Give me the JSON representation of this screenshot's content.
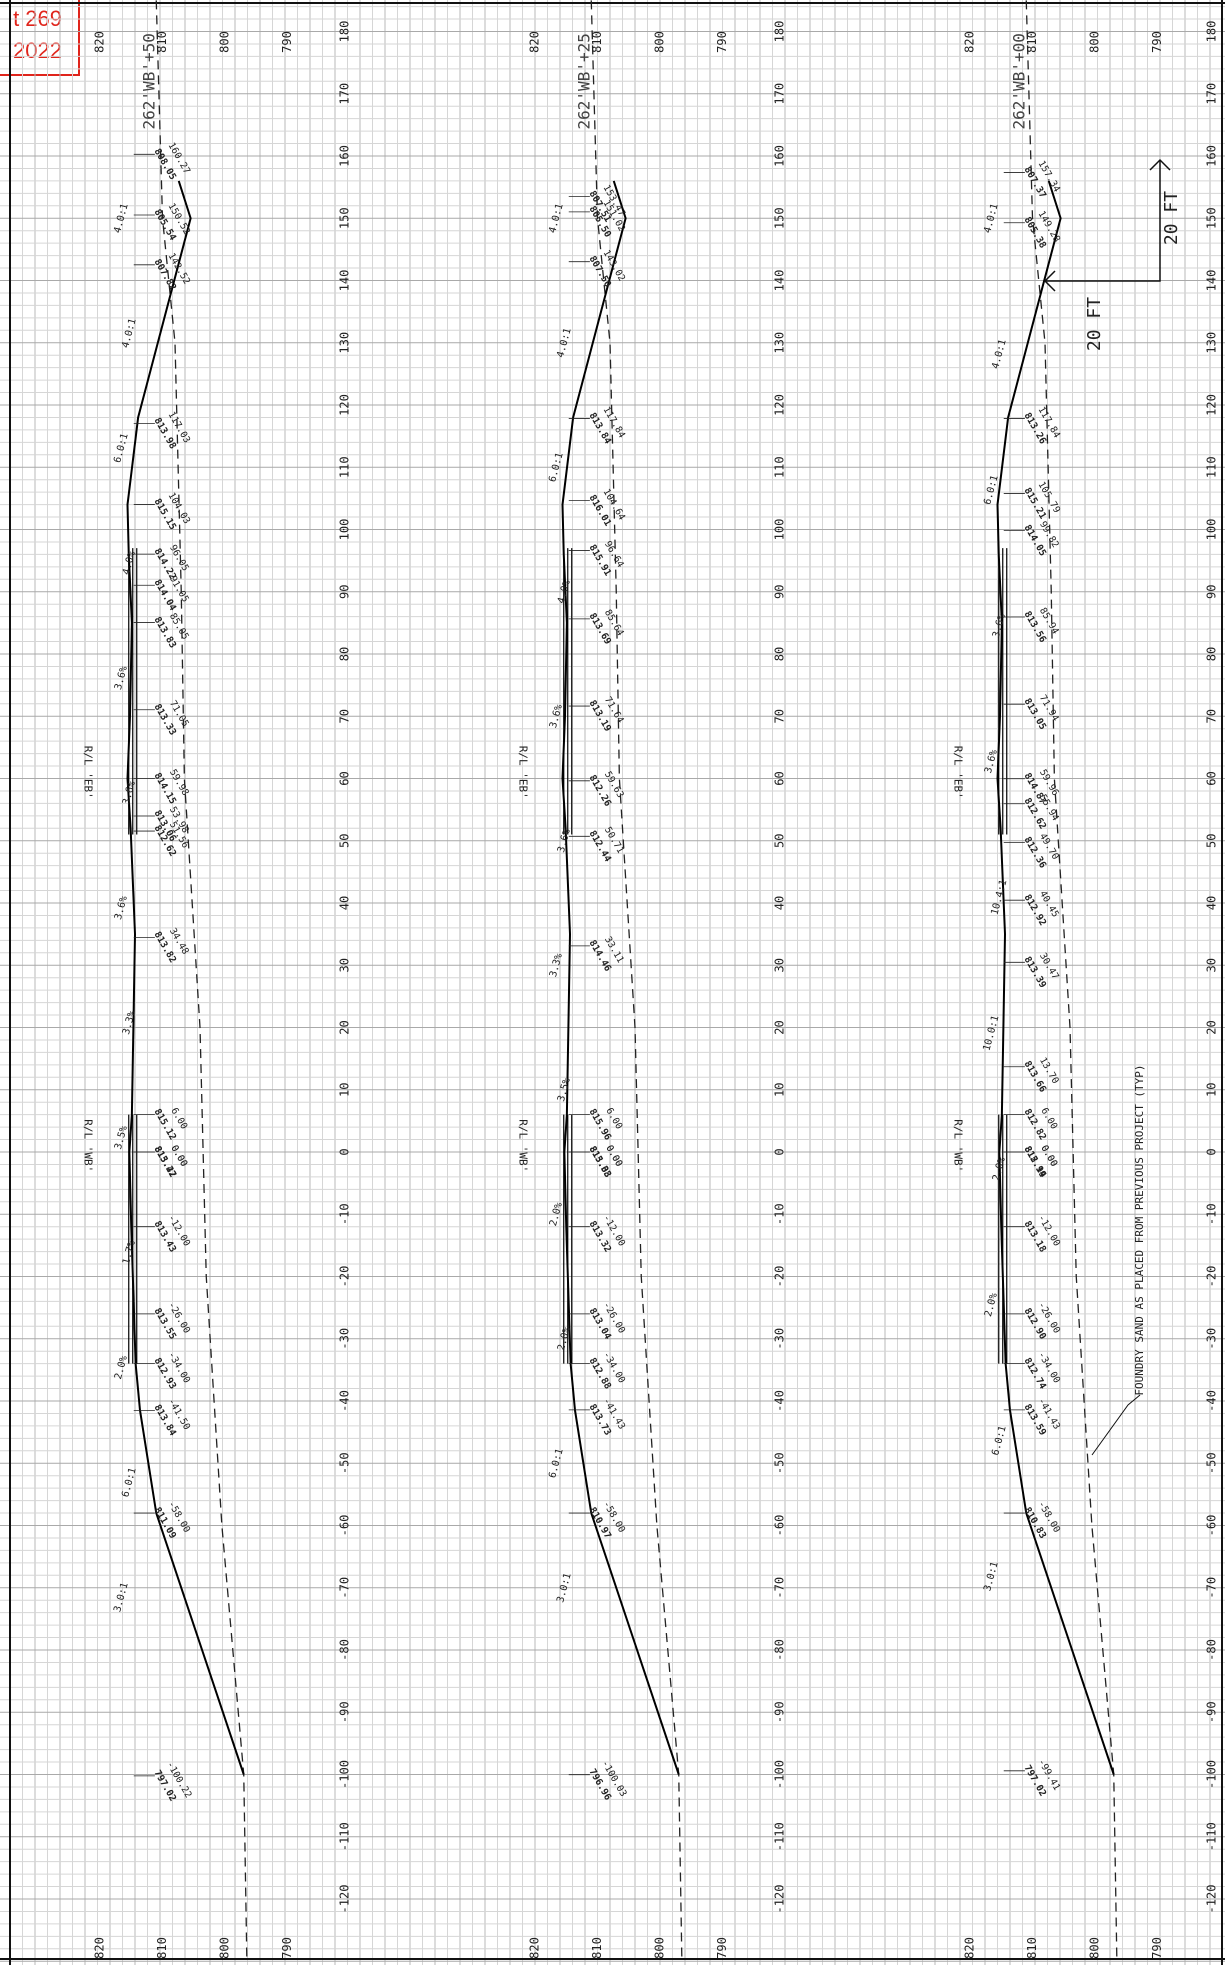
{
  "stamp": {
    "line1": "t 269",
    "line2": "2022"
  },
  "station_axis": {
    "labels": [
      "180",
      "170",
      "160",
      "150",
      "140",
      "130",
      "120",
      "110",
      "100",
      "90",
      "80",
      "70",
      "60",
      "50",
      "40",
      "30",
      "20",
      "10",
      "0",
      "-10",
      "-20",
      "-30",
      "-40",
      "-50",
      "-60",
      "-70",
      "-80",
      "-90",
      "-100",
      "-110",
      "-120"
    ],
    "values": [
      180,
      170,
      160,
      150,
      140,
      130,
      120,
      110,
      100,
      90,
      80,
      70,
      60,
      50,
      40,
      30,
      20,
      10,
      0,
      -10,
      -20,
      -30,
      -40,
      -50,
      -60,
      -70,
      -80,
      -90,
      -100,
      -110,
      -120
    ]
  },
  "elevation_axis": {
    "labels": [
      "820",
      "810",
      "800",
      "790"
    ],
    "values": [
      820,
      810,
      800,
      790
    ]
  },
  "sections": [
    {
      "title": "262'WB'+50",
      "rl_top": "R/L 'EB'",
      "rl_bottom": "R/L 'WB'",
      "slopes": [
        "4.0:1",
        "4.0:1",
        "6.0:1",
        "4.0%",
        "3.6%",
        "3.6%",
        "3.6%",
        "3.3%",
        "3.5%",
        "1.7%",
        "2.0%",
        "6.0:1",
        "3.0:1"
      ],
      "points": [
        {
          "off": "160.27",
          "elev": "808.05"
        },
        {
          "off": "150.52",
          "elev": "805.54"
        },
        {
          "off": "142.52",
          "elev": "807.82"
        },
        {
          "off": "117.03",
          "elev": "813.98"
        },
        {
          "off": "104.03",
          "elev": "815.15"
        },
        {
          "off": "96.05",
          "elev": "814.22"
        },
        {
          "off": "91.05",
          "elev": "814.04"
        },
        {
          "off": "85.05",
          "elev": "813.83"
        },
        {
          "off": "71.05",
          "elev": "813.33"
        },
        {
          "off": "59.98",
          "elev": "814.15"
        },
        {
          "off": "53.98",
          "elev": "813.06"
        },
        {
          "off": "51.56",
          "elev": "812.62"
        },
        {
          "off": "34.48",
          "elev": "813.82"
        },
        {
          "off": "0.00",
          "elev": "815.47"
        },
        {
          "off": "6.00",
          "elev": "815.12"
        },
        {
          "off": "0.00",
          "elev": "813.22"
        },
        {
          "off": "-12.00",
          "elev": "813.43"
        },
        {
          "off": "-26.00",
          "elev": "813.55"
        },
        {
          "off": "-34.00",
          "elev": "812.93"
        },
        {
          "off": "-41.50",
          "elev": "813.84"
        },
        {
          "off": "-58.00",
          "elev": "811.09"
        },
        {
          "off": "-100.22",
          "elev": "797.02"
        }
      ]
    },
    {
      "title": "262'WB'+25",
      "rl_top": "R/L 'EB'",
      "rl_bottom": "R/L 'WB'",
      "slopes": [
        "4.0:1",
        "4.0:1",
        "6.0:1",
        "4.0%",
        "3.6%",
        "3.6%",
        "3.3%",
        "3.5%",
        "2.0%",
        "2.0%",
        "6.0:1",
        "3.0:1"
      ],
      "points": [
        {
          "off": "153.47",
          "elev": "807.51"
        },
        {
          "off": "151.02",
          "elev": "805.50"
        },
        {
          "off": "143.02",
          "elev": "807.50"
        },
        {
          "off": "117.84",
          "elev": "813.84"
        },
        {
          "off": "104.64",
          "elev": "816.01"
        },
        {
          "off": "96.64",
          "elev": "815.91"
        },
        {
          "off": "85.64",
          "elev": "813.69"
        },
        {
          "off": "71.64",
          "elev": "813.19"
        },
        {
          "off": "59.63",
          "elev": "812.26"
        },
        {
          "off": "50.71",
          "elev": "812.44"
        },
        {
          "off": "33.11",
          "elev": "814.46"
        },
        {
          "off": "0.00",
          "elev": "815.33"
        },
        {
          "off": "6.00",
          "elev": "815.96"
        },
        {
          "off": "0.00",
          "elev": "813.08"
        },
        {
          "off": "-12.00",
          "elev": "813.32"
        },
        {
          "off": "-26.00",
          "elev": "813.04"
        },
        {
          "off": "-34.00",
          "elev": "812.88"
        },
        {
          "off": "-41.43",
          "elev": "813.73"
        },
        {
          "off": "-58.00",
          "elev": "810.97"
        },
        {
          "off": "-100.03",
          "elev": "796.96"
        }
      ]
    },
    {
      "title": "262'WB'+00",
      "rl_top": "R/L 'EB'",
      "rl_bottom": "R/L 'WB'",
      "slopes": [
        "4.0:1",
        "4.0:1",
        "6.0:1",
        "3.6%",
        "3.6%",
        "10.4:1",
        "10.0:1",
        "2.0%",
        "2.0%",
        "6.0:1",
        "3.0:1"
      ],
      "points": [
        {
          "off": "157.34",
          "elev": "807.37"
        },
        {
          "off": "149.28",
          "elev": "805.38"
        },
        {
          "off": "117.84",
          "elev": "813.26"
        },
        {
          "off": "105.79",
          "elev": "815.21"
        },
        {
          "off": "99.82",
          "elev": "814.05"
        },
        {
          "off": "85.94",
          "elev": "813.56"
        },
        {
          "off": "71.94",
          "elev": "813.05"
        },
        {
          "off": "59.96",
          "elev": "814.87"
        },
        {
          "off": "55.94",
          "elev": "812.62"
        },
        {
          "off": "49.70",
          "elev": "812.36"
        },
        {
          "off": "40.45",
          "elev": "812.92"
        },
        {
          "off": "30.47",
          "elev": "813.39"
        },
        {
          "off": "13.70",
          "elev": "813.66"
        },
        {
          "off": "0.00",
          "elev": "815.19"
        },
        {
          "off": "6.00",
          "elev": "812.82"
        },
        {
          "off": "0.00",
          "elev": "812.94"
        },
        {
          "off": "-12.00",
          "elev": "813.18"
        },
        {
          "off": "-26.00",
          "elev": "812.90"
        },
        {
          "off": "-34.00",
          "elev": "812.74"
        },
        {
          "off": "-41.43",
          "elev": "813.59"
        },
        {
          "off": "-58.00",
          "elev": "810.83"
        },
        {
          "off": "-99.41",
          "elev": "797.02"
        }
      ]
    }
  ],
  "scale_bar": {
    "horizontal": "20 FT",
    "vertical": "20 FT"
  },
  "note": "FOUNDRY SAND AS PLACED FROM PREVIOUS PROJECT (TYP)"
}
